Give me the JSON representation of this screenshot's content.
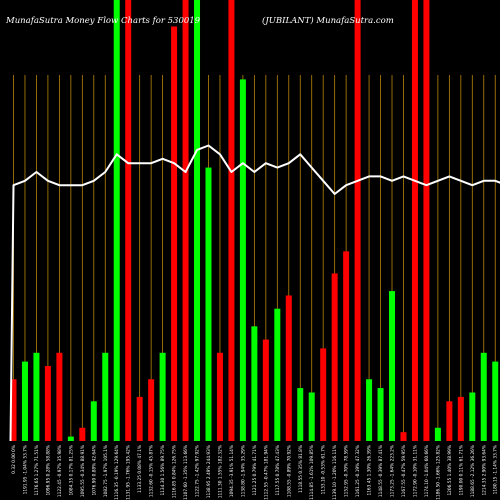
{
  "chart_data": {
    "type": "bar",
    "title_left": "MunafaSutra  Money Flow  Charts for 530019",
    "title_right": "(JUBILANT) MunafaSutra.com",
    "background": "#000000",
    "colors": {
      "up": "#00ff00",
      "down": "#ff0000",
      "line": "#ffffff",
      "grid": "#b8860b"
    },
    "grid": true,
    "ylim": [
      0,
      100
    ],
    "categories": [
      "0.32 0.00 0%",
      "1191.95 -1.04% 53.7%",
      "1176.65 1.27% 71.51%",
      "1096.95 0.28% 58.88%",
      "1122.45 -0.97% 35.98%",
      "1084.35 0.17% 81.25%",
      "1095.55 -0.34% 88.91%",
      "1076.90 0.88% 42.64%",
      "1082.75 -1.97% 105.1%",
      "1116.35 -0.19% 129.64%",
      "1131.95 -1.76% 195.42%",
      "1133.25 0.08% 47.1%",
      "1132.60 -0.15% 45.87%",
      "1134.30 1.56% 89.75%",
      "1116.85 0.84% 126.75%",
      "1107.60 -1.35% 113.66%",
      "1122.75 -1.42% 97.92%",
      "1138.95 2.49% 244.93%",
      "1111.30 1.55% 182.32%",
      "1094.35 -3.91% 51.14%",
      "1138.80 -1.94% 35.29%",
      "1121.25 0.79% 41.71%",
      "1112.55 -0.47% 181.94%",
      "1117.55 0.78% 47.43%",
      "1108.55 -0.89% 70.92%",
      "1118.55 0.35% 81.8%",
      "1114.85 -1.61% 109.85%",
      "1133.10 -0.53% 61.7%",
      "1139.10 -1.20% 116.11%",
      "1152.95 -0.70% 78.59%",
      "1161.25 -0.19% 47.32%",
      "1163.45 1.30% 26.39%",
      "1148.55 -0.39% 87.41%",
      "1173.25 -1.64% 223.2%",
      "1167.55 -0.47% 59.95%",
      "1172.90 -0.10% 31.11%",
      "1174.10 -1.04% 60.66%",
      "1186.50 -1.66% 125.82%",
      "1206.55 1.40% 38.99%",
      "1190.00 0.11% 61.71%",
      "1188.65 -2.12% 36.26%",
      "1214.35 2.90% 93.64%",
      "1180.15 -1.14% 33.7%",
      "1193.80 0.67% 50.65%",
      "1185.80 -0.36% 61.24%",
      "1190.15 -0.89% 63.15%"
    ],
    "series": [
      {
        "values": [
          14,
          18,
          20,
          17,
          20,
          1,
          3,
          9,
          20,
          100,
          100,
          10,
          14,
          20,
          94,
          100,
          100,
          62,
          20,
          100,
          82,
          26,
          23,
          30,
          33,
          12,
          11,
          21,
          38,
          43,
          100,
          14,
          12,
          34,
          2,
          100,
          100,
          3,
          9,
          10,
          11,
          20,
          18,
          13,
          9,
          10
        ],
        "colors": [
          "down",
          "up",
          "up",
          "down",
          "down",
          "up",
          "down",
          "up",
          "up",
          "up",
          "down",
          "down",
          "down",
          "up",
          "down",
          "down",
          "up",
          "up",
          "down",
          "down",
          "up",
          "up",
          "down",
          "up",
          "down",
          "up",
          "up",
          "down",
          "down",
          "down",
          "down",
          "up",
          "up",
          "up",
          "down",
          "down",
          "down",
          "up",
          "down",
          "down",
          "up",
          "up",
          "up",
          "up",
          "down",
          "up"
        ]
      },
      {
        "values": [
          58,
          59,
          61,
          59,
          58,
          58,
          58,
          59,
          61,
          65,
          63,
          63,
          63,
          64,
          63,
          61,
          66,
          67,
          65,
          61,
          63,
          61,
          63,
          62,
          63,
          65,
          62,
          59,
          56,
          58,
          59,
          60,
          60,
          59,
          60,
          59,
          58,
          59,
          60,
          59,
          58,
          59,
          59,
          58,
          57,
          58
        ]
      }
    ]
  }
}
